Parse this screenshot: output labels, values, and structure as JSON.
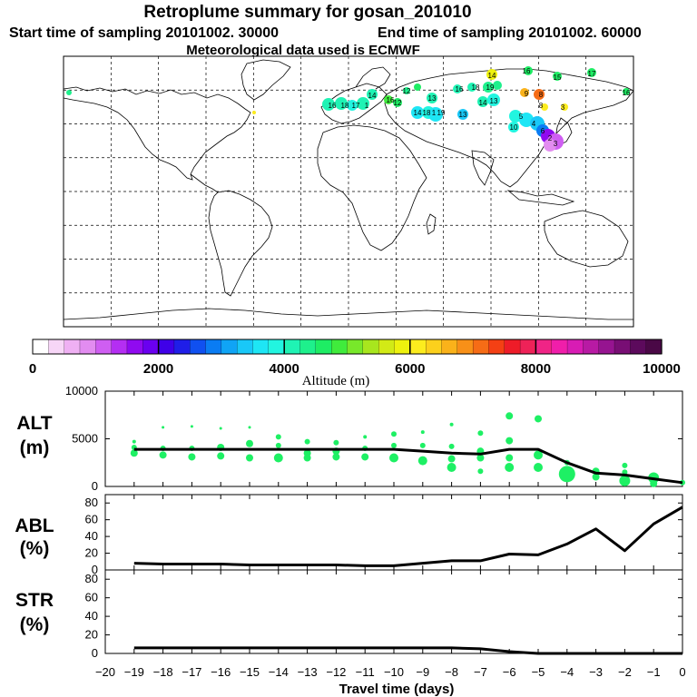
{
  "header": {
    "title": "Retroplume summary for gosan_201010",
    "start": "Start time of sampling 20101002. 30000",
    "end": "End time of sampling 20101002. 60000",
    "met": "Meteorological data used is ECMWF"
  },
  "colorbar": {
    "title": "Altitude (m)",
    "ticks": [
      "0",
      "2000",
      "4000",
      "6000",
      "8000",
      "10000"
    ],
    "range": [
      0,
      10000
    ],
    "colors": [
      "#ffffff",
      "#f7d6f7",
      "#efb0f3",
      "#e28cf0",
      "#cf5ef2",
      "#b42ef2",
      "#900af0",
      "#6a00f0",
      "#3f00e8",
      "#1f1ee8",
      "#1050f0",
      "#0a7cf3",
      "#10a4f5",
      "#19c8f8",
      "#1ee6f5",
      "#22f5e0",
      "#1ff3b4",
      "#1ef08c",
      "#1eed64",
      "#40eb3c",
      "#78e82a",
      "#a8e61e",
      "#d2ea16",
      "#eef20e",
      "#fcec1e",
      "#fcd01c",
      "#fab21a",
      "#f89018",
      "#f66c16",
      "#f44014",
      "#ee1c28",
      "#ee2258",
      "#f02486",
      "#f01eaa",
      "#d81cb4",
      "#b81aa4",
      "#961490",
      "#780e74",
      "#5c0a5c",
      "#4a0846"
    ]
  },
  "map": {
    "plume_labels": [
      "14",
      "16",
      "15",
      "17",
      "16",
      "19",
      "18",
      "9",
      "8",
      "16",
      "12",
      "13",
      "18",
      "14",
      "13",
      "14",
      "13",
      "16",
      "1",
      "19",
      "8",
      "16",
      "18",
      "17",
      "1",
      "14",
      "3",
      "12",
      "5",
      "6",
      "2",
      "3",
      "10",
      "4"
    ]
  },
  "chart_data": [
    {
      "type": "line",
      "name": "ALT",
      "ylabel": "ALT",
      "yunit": "(m)",
      "ylim": [
        0,
        10000
      ],
      "yticks": [
        "0",
        "5000",
        "10000"
      ],
      "x": [
        -19,
        -18,
        -17,
        -16,
        -15,
        -14,
        -13,
        -12,
        -11,
        -10,
        -9,
        -8,
        -7,
        -6,
        -5,
        -4,
        -3,
        -2,
        -1,
        0
      ],
      "values": [
        3900,
        3900,
        3900,
        3900,
        3900,
        3900,
        3900,
        3900,
        3900,
        3900,
        3700,
        3500,
        3400,
        3900,
        3900,
        2500,
        1400,
        1200,
        800,
        400
      ],
      "scatter": [
        {
          "x": -19,
          "y": 4700,
          "r": 2
        },
        {
          "x": -19,
          "y": 4100,
          "r": 3
        },
        {
          "x": -19,
          "y": 3500,
          "r": 4
        },
        {
          "x": -18,
          "y": 6200,
          "r": 1.5
        },
        {
          "x": -18,
          "y": 4000,
          "r": 3
        },
        {
          "x": -18,
          "y": 3300,
          "r": 4
        },
        {
          "x": -17,
          "y": 6300,
          "r": 1.5
        },
        {
          "x": -17,
          "y": 4000,
          "r": 3
        },
        {
          "x": -17,
          "y": 3100,
          "r": 4
        },
        {
          "x": -16,
          "y": 6100,
          "r": 1.5
        },
        {
          "x": -16,
          "y": 4100,
          "r": 4
        },
        {
          "x": -16,
          "y": 3200,
          "r": 4
        },
        {
          "x": -15,
          "y": 6200,
          "r": 1.5
        },
        {
          "x": -15,
          "y": 4500,
          "r": 4
        },
        {
          "x": -15,
          "y": 3000,
          "r": 4
        },
        {
          "x": -14,
          "y": 5200,
          "r": 3
        },
        {
          "x": -14,
          "y": 4300,
          "r": 3
        },
        {
          "x": -14,
          "y": 3000,
          "r": 5
        },
        {
          "x": -13,
          "y": 4700,
          "r": 3
        },
        {
          "x": -13,
          "y": 3500,
          "r": 4
        },
        {
          "x": -13,
          "y": 3000,
          "r": 4
        },
        {
          "x": -12,
          "y": 4600,
          "r": 3
        },
        {
          "x": -12,
          "y": 3700,
          "r": 4
        },
        {
          "x": -12,
          "y": 3100,
          "r": 4
        },
        {
          "x": -11,
          "y": 5200,
          "r": 2
        },
        {
          "x": -11,
          "y": 4000,
          "r": 3
        },
        {
          "x": -11,
          "y": 3100,
          "r": 4
        },
        {
          "x": -10,
          "y": 5500,
          "r": 3
        },
        {
          "x": -10,
          "y": 4300,
          "r": 3
        },
        {
          "x": -10,
          "y": 3000,
          "r": 5
        },
        {
          "x": -9,
          "y": 5700,
          "r": 2
        },
        {
          "x": -9,
          "y": 4300,
          "r": 3
        },
        {
          "x": -9,
          "y": 2700,
          "r": 5
        },
        {
          "x": -8,
          "y": 6500,
          "r": 2
        },
        {
          "x": -8,
          "y": 4200,
          "r": 3
        },
        {
          "x": -8,
          "y": 2900,
          "r": 4
        },
        {
          "x": -8,
          "y": 2000,
          "r": 5
        },
        {
          "x": -7,
          "y": 5600,
          "r": 3
        },
        {
          "x": -7,
          "y": 3700,
          "r": 4
        },
        {
          "x": -7,
          "y": 3000,
          "r": 4
        },
        {
          "x": -7,
          "y": 1600,
          "r": 3
        },
        {
          "x": -6,
          "y": 7400,
          "r": 4
        },
        {
          "x": -6,
          "y": 4800,
          "r": 4
        },
        {
          "x": -6,
          "y": 3000,
          "r": 4
        },
        {
          "x": -6,
          "y": 2000,
          "r": 5
        },
        {
          "x": -5,
          "y": 7100,
          "r": 4
        },
        {
          "x": -5,
          "y": 3300,
          "r": 5
        },
        {
          "x": -5,
          "y": 2000,
          "r": 5
        },
        {
          "x": -4,
          "y": 2500,
          "r": 3
        },
        {
          "x": -4,
          "y": 1300,
          "r": 9
        },
        {
          "x": -3,
          "y": 1600,
          "r": 4
        },
        {
          "x": -3,
          "y": 1000,
          "r": 4
        },
        {
          "x": -2,
          "y": 2200,
          "r": 3
        },
        {
          "x": -2,
          "y": 1500,
          "r": 3
        },
        {
          "x": -2,
          "y": 600,
          "r": 6
        },
        {
          "x": -1,
          "y": 900,
          "r": 6
        },
        {
          "x": -1,
          "y": 300,
          "r": 4
        },
        {
          "x": 0,
          "y": 400,
          "r": 3
        }
      ],
      "point_color": "#1ef064"
    },
    {
      "type": "line",
      "name": "ABL",
      "ylabel": "ABL",
      "yunit": "(%)",
      "ylim": [
        0,
        90
      ],
      "yticks": [
        "0",
        "20",
        "40",
        "60",
        "80"
      ],
      "x": [
        -19,
        -18,
        -17,
        -16,
        -15,
        -14,
        -13,
        -12,
        -11,
        -10,
        -9,
        -8,
        -7,
        -6,
        -5,
        -4,
        -3,
        -2,
        -1,
        0
      ],
      "values": [
        8,
        7,
        7,
        7,
        6,
        6,
        6,
        6,
        5,
        5,
        8,
        11,
        11,
        19,
        18,
        31,
        49,
        23,
        55,
        75
      ]
    },
    {
      "type": "line",
      "name": "STR",
      "ylabel": "STR",
      "yunit": "(%)",
      "ylim": [
        0,
        90
      ],
      "yticks": [
        "0",
        "20",
        "40",
        "60",
        "80"
      ],
      "x": [
        -19,
        -18,
        -17,
        -16,
        -15,
        -14,
        -13,
        -12,
        -11,
        -10,
        -9,
        -8,
        -7,
        -6,
        -5,
        -4,
        -3,
        -2,
        -1,
        0
      ],
      "values": [
        6,
        6,
        6,
        6,
        6,
        6,
        6,
        6,
        6,
        6,
        6,
        6,
        5,
        2,
        0,
        0,
        0,
        0,
        0,
        0
      ]
    }
  ],
  "xaxis": {
    "label": "Travel time (days)",
    "range": [
      -20,
      0
    ],
    "ticks": [
      "−20",
      "−19",
      "−18",
      "−17",
      "−16",
      "−15",
      "−14",
      "−13",
      "−12",
      "−11",
      "−10",
      "−9",
      "−8",
      "−7",
      "−6",
      "−5",
      "−4",
      "−3",
      "−2",
      "−1",
      "0"
    ]
  }
}
